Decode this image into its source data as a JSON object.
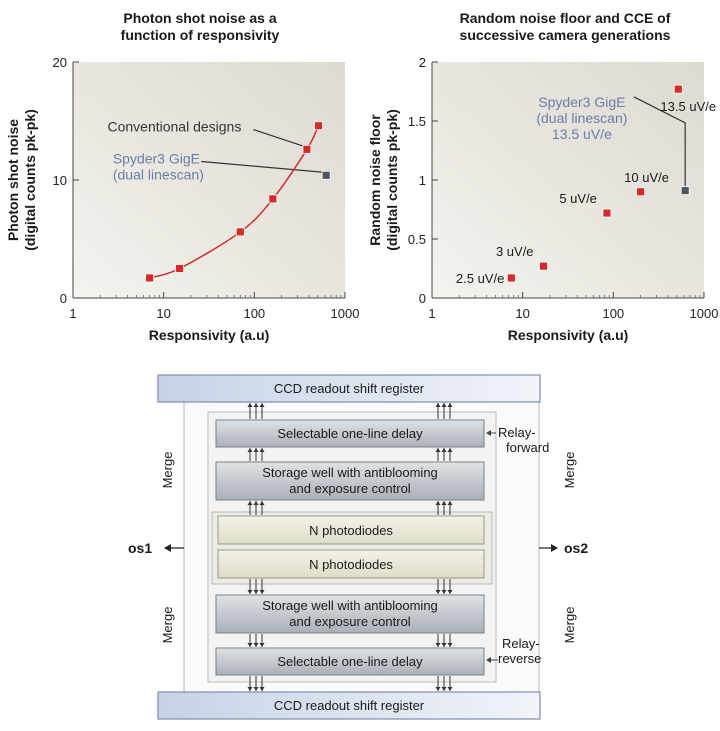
{
  "chart_data": [
    {
      "type": "scatter",
      "title_lines": [
        "Photon shot noise as a",
        "function of responsivity"
      ],
      "xlabel": "Responsivity (a.u)",
      "ylabel_lines": [
        "Photon shot noise",
        "(digital counts pk-pk)"
      ],
      "x_scale": "log",
      "xlim": [
        1,
        1000
      ],
      "ylim": [
        0,
        20
      ],
      "x_ticks": [
        {
          "v": 1,
          "label": "1"
        },
        {
          "v": 10,
          "label": "10"
        },
        {
          "v": 100,
          "label": "100"
        },
        {
          "v": 1000,
          "label": "1000"
        }
      ],
      "y_ticks": [
        {
          "v": 0,
          "label": "0"
        },
        {
          "v": 10,
          "label": "10"
        },
        {
          "v": 20,
          "label": "20"
        }
      ],
      "series": [
        {
          "color": "#d42a2a",
          "connected": true,
          "points": [
            {
              "x": 7,
              "y": 1.7
            },
            {
              "x": 15,
              "y": 2.5
            },
            {
              "x": 70,
              "y": 5.6
            },
            {
              "x": 160,
              "y": 8.4
            },
            {
              "x": 380,
              "y": 12.6
            },
            {
              "x": 510,
              "y": 14.6
            }
          ]
        },
        {
          "color": "#4d5560",
          "connected": false,
          "points": [
            {
              "x": 620,
              "y": 10.4
            }
          ]
        }
      ],
      "annotations": [
        {
          "text_lines": [
            "Conventional designs"
          ],
          "color": "#333333",
          "at": {
            "x": 2.4,
            "y": 14.1
          },
          "anchor": "start",
          "target": {
            "x": 380,
            "y": 12.6
          }
        },
        {
          "text_lines": [
            "Spyder3 GigE",
            "(dual linescan)"
          ],
          "color": "#6a7ea8",
          "at": {
            "x": 2.75,
            "y": 11.4
          },
          "anchor": "start",
          "target": {
            "x": 620,
            "y": 10.4
          }
        }
      ]
    },
    {
      "type": "scatter",
      "title_lines": [
        "Random noise floor and CCE of",
        "successive camera generations"
      ],
      "xlabel": "Responsivity (a.u)",
      "ylabel_lines": [
        "Random noise floor",
        "(digital counts pk-pk)"
      ],
      "x_scale": "log",
      "xlim": [
        1,
        1000
      ],
      "ylim": [
        0,
        2
      ],
      "x_ticks": [
        {
          "v": 1,
          "label": "1"
        },
        {
          "v": 10,
          "label": "10"
        },
        {
          "v": 100,
          "label": "100"
        },
        {
          "v": 1000,
          "label": "1000"
        }
      ],
      "y_ticks": [
        {
          "v": 0,
          "label": "0"
        },
        {
          "v": 0.5,
          "label": "0.5"
        },
        {
          "v": 1,
          "label": "1"
        },
        {
          "v": 1.5,
          "label": "1.5"
        },
        {
          "v": 2,
          "label": "2"
        }
      ],
      "series": [
        {
          "color": "#d42a2a",
          "connected": false,
          "points": [
            {
              "x": 7.5,
              "y": 0.17,
              "label": "2.5 uV/e"
            },
            {
              "x": 17,
              "y": 0.27,
              "label": "3 uV/e"
            },
            {
              "x": 85,
              "y": 0.72,
              "label": "5 uV/e"
            },
            {
              "x": 200,
              "y": 0.9,
              "label": "10 uV/e"
            },
            {
              "x": 520,
              "y": 1.77,
              "label": "13.5 uV/e"
            }
          ]
        },
        {
          "color": "#4d5560",
          "connected": false,
          "points": [
            {
              "x": 620,
              "y": 0.91
            }
          ]
        }
      ],
      "annotations": [
        {
          "text_lines": [
            "Spyder3 GigE",
            "(dual linescan)",
            "13.5 uV/e"
          ],
          "color": "#6a7ea8",
          "at": {
            "x": 45,
            "y": 1.62
          },
          "anchor": "middle",
          "target": {
            "x": 620,
            "y": 0.91
          }
        }
      ]
    }
  ],
  "diagram": {
    "top_register": "CCD readout shift register",
    "bottom_register": "CCD readout shift register",
    "delay_top": "Selectable one-line delay",
    "delay_bottom": "Selectable one-line delay",
    "storage_top_lines": [
      "Storage well with antiblooming",
      "and exposure control"
    ],
    "storage_bottom_lines": [
      "Storage well with antiblooming",
      "and exposure control"
    ],
    "photodiodes_top": "N photodiodes",
    "photodiodes_bottom": "N photodiodes",
    "merge": "Merge",
    "relay_forward_lines": [
      "Relay-",
      "forward"
    ],
    "relay_reverse_lines": [
      "Relay-",
      "reverse"
    ],
    "os1": "os1",
    "os2": "os2"
  }
}
